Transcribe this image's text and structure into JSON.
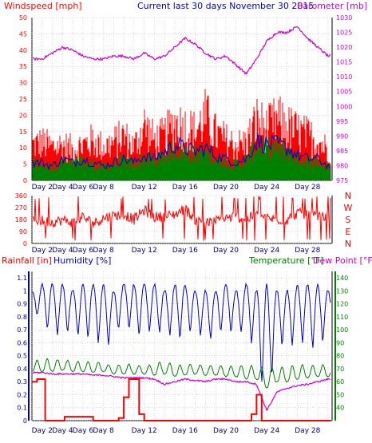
{
  "colors": {
    "wind": "#ff0000",
    "wind_avg": "#0000cc",
    "wind_calm": "#008000",
    "baro": "#cc00cc",
    "direction": "#ff0000",
    "rain": "#ff0000",
    "humidity": "#0000cc",
    "temperature": "#008000",
    "dewpoint": "#cc00cc",
    "grid": "#b0b0b0",
    "axis": "#000000"
  },
  "x_days": [
    "Day 2",
    "Day 4",
    "Day 6",
    "Day 8",
    "Day 12",
    "Day 16",
    "Day 20",
    "Day 24",
    "Day 28"
  ],
  "chart_data": [
    {
      "type": "line",
      "title": "Current last 30 days November 30 2015",
      "left_label": "Windspeed [mph]",
      "right_label": "Barometer [mb]",
      "x_range": [
        1,
        30
      ],
      "y_left_ticks": [
        "0",
        "5",
        "10",
        "15",
        "20",
        "25",
        "30",
        "35",
        "40",
        "45",
        "50"
      ],
      "y_left_range": [
        0,
        50
      ],
      "y_right_ticks": [
        "975",
        "980",
        "985",
        "990",
        "995",
        "1000",
        "1005",
        "1010",
        "1015",
        "1020",
        "1025",
        "1030"
      ],
      "y_right_range": [
        975,
        1030
      ],
      "series": [
        {
          "name": "Windspeed [mph]",
          "axis": "left",
          "x": [
            1,
            2,
            3,
            4,
            5,
            6,
            7,
            8,
            9,
            10,
            11,
            12,
            13,
            14,
            15,
            16,
            17,
            18,
            19,
            20,
            21,
            22,
            23,
            24,
            25,
            26,
            27,
            28,
            29,
            30
          ],
          "gust_max": [
            16,
            17,
            15,
            16,
            14,
            16,
            18,
            15,
            17,
            20,
            15,
            25,
            18,
            20,
            26,
            24,
            22,
            29,
            21,
            18,
            16,
            17,
            27,
            23,
            27,
            24,
            22,
            20,
            18,
            14
          ],
          "avg": [
            5,
            5,
            4,
            6,
            5,
            6,
            5,
            4,
            5,
            6,
            5,
            7,
            6,
            8,
            10,
            9,
            8,
            9,
            7,
            6,
            5,
            6,
            11,
            10,
            10,
            9,
            7,
            6,
            6,
            4
          ],
          "low": [
            0,
            0,
            0,
            0,
            0,
            0,
            0,
            0,
            0,
            0,
            0,
            0,
            0,
            0,
            0,
            0,
            0,
            0,
            0,
            0,
            0,
            0,
            0,
            0,
            0,
            0,
            0,
            0,
            0,
            0
          ]
        },
        {
          "name": "Barometer [mb]",
          "axis": "right",
          "x": [
            1,
            2,
            3,
            4,
            5,
            6,
            7,
            8,
            9,
            10,
            11,
            12,
            13,
            14,
            15,
            16,
            17,
            18,
            19,
            20,
            21,
            22,
            23,
            24,
            25,
            26,
            27,
            28,
            29,
            30
          ],
          "values": [
            1016,
            1016,
            1018,
            1020,
            1019,
            1017,
            1016,
            1016,
            1017,
            1017,
            1016,
            1018,
            1016,
            1017,
            1020,
            1023,
            1021,
            1018,
            1016,
            1017,
            1014,
            1011,
            1016,
            1022,
            1025,
            1025,
            1027,
            1023,
            1020,
            1017
          ]
        }
      ]
    },
    {
      "type": "scatter",
      "left_label": "",
      "x_range": [
        1,
        30
      ],
      "y_left_ticks": [
        "0",
        "90",
        "180",
        "270",
        "360"
      ],
      "y_range": [
        0,
        360
      ],
      "right_compass": [
        "N",
        "W",
        "S",
        "E",
        "N"
      ],
      "series": [
        {
          "name": "Wind direction",
          "x": [
            1,
            2,
            3,
            4,
            5,
            6,
            7,
            8,
            9,
            10,
            11,
            12,
            13,
            14,
            15,
            16,
            17,
            18,
            19,
            20,
            21,
            22,
            23,
            24,
            25,
            26,
            27,
            28,
            29,
            30
          ],
          "values": [
            180,
            170,
            160,
            175,
            160,
            200,
            150,
            190,
            210,
            220,
            180,
            250,
            200,
            200,
            220,
            260,
            180,
            150,
            170,
            190,
            200,
            180,
            220,
            190,
            180,
            180,
            230,
            210,
            200,
            190
          ]
        }
      ]
    },
    {
      "type": "line",
      "left_labels": [
        "Rainfall [in]",
        "Humidity [%]"
      ],
      "right_labels": [
        "Temperature [°F]",
        "Dew Point [°F]"
      ],
      "x_range": [
        1,
        30
      ],
      "y_left_ticks": [
        "0",
        "0.1",
        "0.2",
        "0.3",
        "0.4",
        "0.5",
        "0.6",
        "0.7",
        "0.8",
        "0.9",
        "1",
        "1.1"
      ],
      "y_left_range": [
        0,
        1.15
      ],
      "y_right_ticks": [
        "40",
        "50",
        "60",
        "70",
        "80",
        "90",
        "100",
        "110",
        "120",
        "130",
        "140"
      ],
      "y_right_range": [
        30,
        145
      ],
      "series": [
        {
          "name": "Rainfall [in]",
          "axis": "left",
          "x": [
            1,
            1.5,
            2,
            2.3,
            4,
            4.2,
            7,
            9.5,
            10,
            10.5,
            11.5,
            12,
            22.5,
            23,
            23.5,
            30
          ],
          "values": [
            0.3,
            0.32,
            0.32,
            0,
            0,
            0.03,
            0,
            0.02,
            0.18,
            0.32,
            0.05,
            0,
            0.05,
            0.2,
            0,
            0
          ]
        },
        {
          "name": "Humidity [%]",
          "axis": "left",
          "x": [
            1,
            2,
            3,
            4,
            5,
            6,
            7,
            8,
            9,
            10,
            11,
            12,
            13,
            14,
            15,
            16,
            17,
            18,
            19,
            20,
            21,
            22,
            23,
            24,
            25,
            26,
            27,
            28,
            29,
            30
          ],
          "values_high": [
            1.0,
            1.05,
            1.05,
            1.05,
            1.0,
            1.05,
            1.05,
            1.05,
            1.0,
            1.05,
            1.05,
            1.05,
            1.05,
            1.0,
            1.05,
            1.05,
            1.0,
            1.0,
            1.0,
            1.05,
            1.0,
            1.05,
            1.0,
            1.05,
            1.0,
            1.0,
            1.05,
            1.05,
            1.05,
            1.0
          ],
          "values_low": [
            0.85,
            0.75,
            0.65,
            0.65,
            0.7,
            0.6,
            0.65,
            0.55,
            0.6,
            0.8,
            0.6,
            0.7,
            0.65,
            0.7,
            0.6,
            0.65,
            0.7,
            0.6,
            0.65,
            0.7,
            0.65,
            0.7,
            0.5,
            0.05,
            0.6,
            0.55,
            0.6,
            0.6,
            0.5,
            0.7
          ]
        },
        {
          "name": "Temperature [°F]",
          "axis": "right",
          "x": [
            1,
            2,
            3,
            4,
            5,
            6,
            7,
            8,
            9,
            10,
            11,
            12,
            13,
            14,
            15,
            16,
            17,
            18,
            19,
            20,
            21,
            22,
            23,
            24,
            25,
            26,
            27,
            28,
            29,
            30
          ],
          "values_high": [
            75,
            78,
            77,
            77,
            76,
            75,
            76,
            74,
            72,
            74,
            73,
            72,
            74,
            76,
            73,
            73,
            74,
            72,
            73,
            72,
            72,
            73,
            72,
            70,
            72,
            71,
            74,
            72,
            73,
            73
          ],
          "values_low": [
            68,
            68,
            68,
            69,
            68,
            68,
            67,
            68,
            66,
            66,
            66,
            66,
            65,
            66,
            64,
            65,
            66,
            65,
            65,
            64,
            64,
            62,
            62,
            55,
            60,
            60,
            62,
            63,
            64,
            64
          ]
        },
        {
          "name": "Dew Point [°F]",
          "axis": "right",
          "x": [
            1,
            2,
            3,
            4,
            5,
            6,
            7,
            8,
            9,
            10,
            11,
            12,
            13,
            14,
            15,
            16,
            17,
            18,
            19,
            20,
            21,
            22,
            23,
            24,
            25,
            26,
            27,
            28,
            29,
            30
          ],
          "values": [
            67,
            67,
            66,
            66,
            66,
            66,
            65,
            65,
            64,
            63,
            63,
            63,
            62,
            58,
            60,
            62,
            61,
            60,
            62,
            62,
            60,
            60,
            58,
            38,
            52,
            55,
            57,
            58,
            60,
            62
          ]
        }
      ]
    }
  ]
}
